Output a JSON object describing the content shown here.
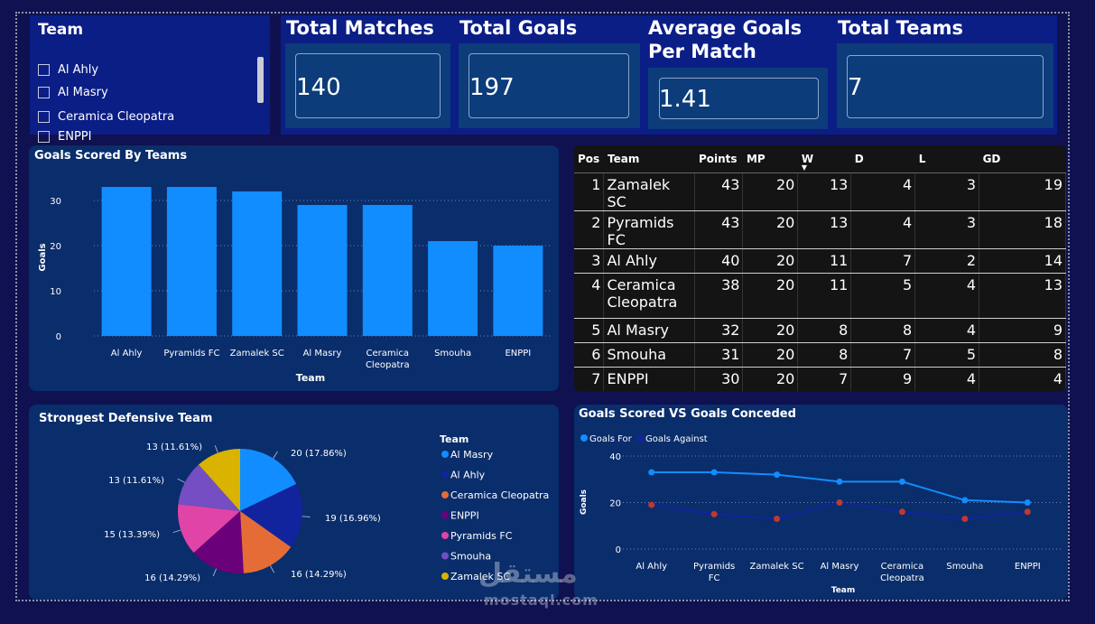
{
  "slicer": {
    "title": "Team",
    "items": [
      "Al Ahly",
      "Al Masry",
      "Ceramica Cleopatra",
      "ENPPI"
    ]
  },
  "kpis": [
    {
      "title": "Total Matches",
      "value": "140"
    },
    {
      "title": "Total Goals",
      "value": "197"
    },
    {
      "title": "Average Goals Per Match",
      "value": "1.41"
    },
    {
      "title": "Total Teams",
      "value": "7"
    }
  ],
  "standings": {
    "headers": [
      "Pos",
      "Team",
      "Points",
      "MP",
      "W",
      "D",
      "L",
      "GD"
    ],
    "sort_column": "W",
    "rows": [
      {
        "pos": "1",
        "team": "Zamalek SC",
        "points": "43",
        "mp": "20",
        "w": "13",
        "d": "4",
        "l": "3",
        "gd": "19"
      },
      {
        "pos": "2",
        "team": "Pyramids FC",
        "points": "43",
        "mp": "20",
        "w": "13",
        "d": "4",
        "l": "3",
        "gd": "18"
      },
      {
        "pos": "3",
        "team": "Al Ahly",
        "points": "40",
        "mp": "20",
        "w": "11",
        "d": "7",
        "l": "2",
        "gd": "14"
      },
      {
        "pos": "4",
        "team": "Ceramica Cleopatra",
        "points": "38",
        "mp": "20",
        "w": "11",
        "d": "5",
        "l": "4",
        "gd": "13"
      },
      {
        "pos": "5",
        "team": "Al Masry",
        "points": "32",
        "mp": "20",
        "w": "8",
        "d": "8",
        "l": "4",
        "gd": "9"
      },
      {
        "pos": "6",
        "team": "Smouha",
        "points": "31",
        "mp": "20",
        "w": "8",
        "d": "7",
        "l": "5",
        "gd": "8"
      },
      {
        "pos": "7",
        "team": "ENPPI",
        "points": "30",
        "mp": "20",
        "w": "7",
        "d": "9",
        "l": "4",
        "gd": "4"
      }
    ]
  },
  "chart_data": [
    {
      "type": "bar",
      "title": "Goals Scored By Teams",
      "xlabel": "Team",
      "ylabel": "Goals",
      "categories": [
        "Al Ahly",
        "Pyramids FC",
        "Zamalek SC",
        "Al Masry",
        "Ceramica Cleopatra",
        "Smouha",
        "ENPPI"
      ],
      "values": [
        33,
        33,
        32,
        29,
        29,
        21,
        20
      ],
      "ylim": [
        0,
        35
      ],
      "yticks": [
        0,
        10,
        20,
        30
      ],
      "grid": true,
      "color": "#118dff"
    },
    {
      "type": "pie",
      "title": "Strongest Defensive Team",
      "legend_title": "Team",
      "legend_position": "right",
      "slices": [
        {
          "label": "Al Masry",
          "value": 20,
          "display": "20 (17.86%)",
          "color": "#118dff"
        },
        {
          "label": "Al Ahly",
          "value": 19,
          "display": "19 (16.96%)",
          "color": "#12239e"
        },
        {
          "label": "Ceramica Cleopatra",
          "value": 16,
          "display": "16 (14.29%)",
          "color": "#e66c37"
        },
        {
          "label": "ENPPI",
          "value": 16,
          "display": "16 (14.29%)",
          "color": "#6b007b"
        },
        {
          "label": "Pyramids FC",
          "value": 15,
          "display": "15 (13.39%)",
          "color": "#e044a7"
        },
        {
          "label": "Smouha",
          "value": 13,
          "display": "13 (11.61%)",
          "color": "#744ec2"
        },
        {
          "label": "Zamalek SC",
          "value": 13,
          "display": "13 (11.61%)",
          "color": "#d9b300"
        }
      ]
    },
    {
      "type": "line",
      "title": "Goals Scored VS Goals Conceded",
      "xlabel": "Team",
      "ylabel": "Goals",
      "categories": [
        "Al Ahly",
        "Pyramids FC",
        "Zamalek SC",
        "Al Masry",
        "Ceramica Cleopatra",
        "Smouha",
        "ENPPI"
      ],
      "ylim": [
        0,
        40
      ],
      "yticks": [
        0,
        20,
        40
      ],
      "legend_position": "top-left",
      "series": [
        {
          "name": "Goals For",
          "values": [
            33,
            33,
            32,
            29,
            29,
            21,
            20
          ],
          "color": "#118dff",
          "marker": "#118dff"
        },
        {
          "name": "Goals Against",
          "values": [
            19,
            15,
            13,
            20,
            16,
            13,
            16
          ],
          "color": "#12239e",
          "marker": "#c0392b"
        }
      ]
    }
  ],
  "watermark": {
    "arabic": "مستقل",
    "latin": "mostaql.com"
  }
}
